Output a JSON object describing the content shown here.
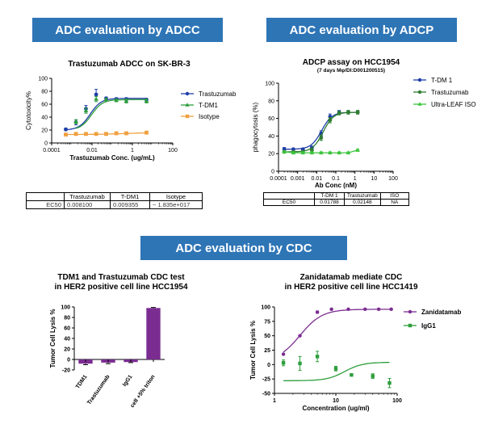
{
  "banners": {
    "adcc": "ADC evaluation by ADCC",
    "adcp": "ADC evaluation by ADCP",
    "cdc": "ADC evaluation by CDC"
  },
  "ec50_tables": {
    "adcc": {
      "headers": [
        "",
        "Trastuzumab",
        "T-DM1",
        "Isotype"
      ],
      "row": [
        "EC50",
        "0.008100",
        "0.009355",
        "~ 1.835e+017"
      ]
    },
    "adcp": {
      "headers": [
        "",
        "T-DM 1",
        "Trastuzumab",
        "ISO"
      ],
      "row": [
        "EC50",
        "0.01788",
        "0.02148",
        "NA"
      ]
    }
  },
  "chart_data": [
    {
      "id": "adcc",
      "type": "scatter",
      "title": "Trastuzumab ADCC on SK-BR-3",
      "subtitle": "",
      "xlabel": "Trastuzumab Conc. (ug/mL)",
      "ylabel": "Cytotoxicity%",
      "xscale": "log",
      "xlim": [
        0.0001,
        100
      ],
      "ylim": [
        0,
        100
      ],
      "xticks": [
        0.0001,
        0.01,
        1,
        100
      ],
      "xticklabels": [
        "0.0001",
        "0.01",
        "1",
        "100"
      ],
      "yticks": [
        0,
        20,
        40,
        60,
        80,
        100
      ],
      "legend": "right",
      "fit": "sigmoid",
      "series": [
        {
          "name": "Trastuzumab",
          "color": "#1f3ea8",
          "marker": "circle",
          "x": [
            0.0005,
            0.0016,
            0.005,
            0.016,
            0.05,
            0.16,
            0.5,
            5
          ],
          "y": [
            21,
            32,
            53,
            75,
            69,
            68,
            68,
            67
          ],
          "err": [
            2,
            4,
            5,
            8,
            2,
            2,
            2,
            2
          ],
          "fit_bottom": 20,
          "fit_top": 69,
          "fit_ec50": 0.0081,
          "fit_hill": 1.6
        },
        {
          "name": "T-DM1",
          "color": "#2e9e3c",
          "marker": "triangle",
          "x": [
            0.0016,
            0.005,
            0.016,
            0.05,
            0.16,
            0.5,
            5
          ],
          "y": [
            33,
            50,
            68,
            67,
            66,
            65,
            65
          ],
          "err": [
            3,
            4,
            4,
            2,
            2,
            3,
            3
          ],
          "fit_bottom": 20,
          "fit_top": 67,
          "fit_ec50": 0.00936,
          "fit_hill": 1.6
        },
        {
          "name": "Isotype",
          "color": "#f0a040",
          "marker": "square",
          "x": [
            0.0005,
            0.0016,
            0.005,
            0.016,
            0.05,
            0.16,
            0.5,
            5
          ],
          "y": [
            13,
            14,
            14,
            14,
            14,
            15,
            15,
            16
          ],
          "err": [
            1,
            1,
            1,
            1,
            1,
            1,
            1,
            1
          ],
          "fit_bottom": 13,
          "fit_top": 17,
          "fit_ec50": 1,
          "fit_hill": 0.5
        }
      ]
    },
    {
      "id": "adcp",
      "type": "scatter",
      "title": "ADCP assay on HCC1954",
      "subtitle": "(7 days Mφ/DI:D001200515)",
      "xlabel": "Ab Conc (nM)",
      "ylabel": "phagocytosis (%)",
      "xscale": "log",
      "xlim": [
        0.0001,
        100
      ],
      "ylim": [
        0,
        100
      ],
      "xticks": [
        0.0001,
        0.001,
        0.01,
        0.1,
        1,
        10,
        100
      ],
      "xticklabels": [
        "0.0001",
        "0.001",
        "0.01",
        "0.1",
        "1",
        "10",
        "100"
      ],
      "yticks": [
        0,
        20,
        40,
        60,
        80,
        100
      ],
      "legend": "right",
      "fit": "sigmoid",
      "series": [
        {
          "name": "T-DM 1",
          "color": "#1f3ea8",
          "marker": "circle",
          "x": [
            0.0002,
            0.0006,
            0.0019,
            0.0056,
            0.017,
            0.05,
            0.15,
            0.45,
            1.4
          ],
          "y": [
            25,
            25,
            25,
            27,
            43,
            62,
            67,
            67,
            67
          ],
          "err": [
            2,
            1,
            1,
            1,
            3,
            3,
            2,
            2,
            2
          ],
          "fit_bottom": 25,
          "fit_top": 67,
          "fit_ec50": 0.0179,
          "fit_hill": 1.6
        },
        {
          "name": "Trastuzumab",
          "color": "#2e7d2e",
          "marker": "circle",
          "x": [
            0.0002,
            0.0006,
            0.0019,
            0.0056,
            0.017,
            0.05,
            0.15,
            0.45,
            1.4
          ],
          "y": [
            22,
            22,
            22,
            24,
            38,
            58,
            66,
            67,
            67
          ],
          "err": [
            1,
            1,
            1,
            1,
            3,
            3,
            2,
            2,
            2
          ],
          "fit_bottom": 22,
          "fit_top": 67,
          "fit_ec50": 0.0215,
          "fit_hill": 1.6
        },
        {
          "name": "Ultra-LEAF ISO",
          "color": "#3cc43c",
          "marker": "triangle",
          "x": [
            0.0002,
            0.0006,
            0.0019,
            0.0056,
            0.017,
            0.05,
            0.15,
            0.45,
            1.4
          ],
          "y": [
            22,
            21,
            21,
            21,
            21,
            21,
            21,
            21,
            24
          ],
          "err": [
            1,
            1,
            1,
            1,
            1,
            1,
            1,
            1,
            1
          ],
          "fit": "line"
        }
      ]
    },
    {
      "id": "cdc_bar",
      "type": "bar",
      "title": "TDM1 and Trastuzumab CDC test\nin HER2 positive cell line HCC1954",
      "xlabel": "",
      "ylabel": "Tumor Cell Lysis %",
      "ylim": [
        -20,
        100
      ],
      "yticks": [
        -20,
        0,
        20,
        40,
        60,
        80,
        100
      ],
      "categories": [
        "TDM1",
        "Trastuzumab",
        "IgG1",
        "cell +5% triton"
      ],
      "values": [
        -8,
        -6,
        -5,
        98
      ],
      "err": [
        2,
        2,
        1,
        1
      ],
      "color": "#7b2c91"
    },
    {
      "id": "cdc_curve",
      "type": "scatter",
      "title": "Zanidatamab mediate CDC\nin HER2 positive cell line HCC1419",
      "xlabel": "Concentration (ug/ml)",
      "ylabel": "Tumor Cell Lysis %",
      "xscale": "log",
      "xlim": [
        1,
        100
      ],
      "ylim": [
        -50,
        100
      ],
      "xticks": [
        1,
        10,
        100
      ],
      "xticklabels": [
        "1",
        "10",
        "100"
      ],
      "yticks": [
        -50,
        -25,
        0,
        25,
        50,
        75,
        100
      ],
      "legend": "right",
      "fit": "sigmoid",
      "series": [
        {
          "name": "Zanidatamab",
          "color": "#7b2c91",
          "marker": "circle",
          "x": [
            1.4,
            2.6,
            5,
            8.5,
            16,
            30,
            50,
            80
          ],
          "y": [
            18,
            50,
            91,
            96,
            96,
            96,
            96,
            96
          ],
          "err": [
            1,
            1,
            2,
            1,
            1,
            1,
            1,
            1
          ],
          "fit_bottom": 5,
          "fit_top": 96,
          "fit_ec50": 2.6,
          "fit_hill": 2.4
        },
        {
          "name": "IgG1",
          "color": "#2e9e3c",
          "marker": "square",
          "x": [
            1.4,
            2.6,
            5,
            10,
            18,
            40,
            75
          ],
          "y": [
            3,
            2,
            14,
            -7,
            -18,
            -20,
            -32
          ],
          "err": [
            5,
            12,
            9,
            4,
            1,
            4,
            8
          ],
          "fit_bottom": -28,
          "fit_top": 4,
          "fit_ec50": 14,
          "fit_hill": 3
        }
      ]
    }
  ]
}
